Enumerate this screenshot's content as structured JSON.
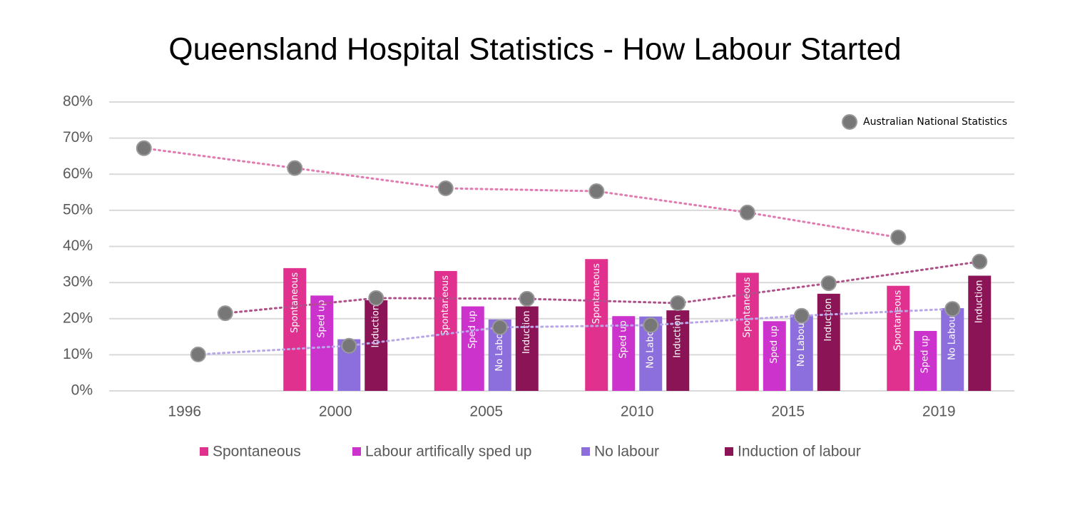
{
  "chart_data": {
    "type": "bar",
    "title": "Queensland Hospital Statistics  - How Labour Started",
    "categories": [
      "1996",
      "2000",
      "2005",
      "2010",
      "2015",
      "2019"
    ],
    "series": [
      {
        "name": "Spontaneous",
        "color": "#e0318e",
        "values": [
          null,
          34,
          33.2,
          36.5,
          32.7,
          29.1
        ],
        "bar_labels": [
          null,
          "Spontaneous",
          "Spontaneous",
          "Spontaneous",
          "Spontaneous",
          "Spontaneous"
        ]
      },
      {
        "name": "Labour artifically sped up",
        "color": "#cc33cc",
        "values": [
          null,
          26.4,
          23.4,
          20.7,
          19.3,
          16.6
        ],
        "bar_labels": [
          null,
          "Sped up",
          "Sped up",
          "Sped up",
          "Sped up",
          "Sped up"
        ]
      },
      {
        "name": "No labour",
        "color": "#8c6fdc",
        "values": [
          null,
          14.3,
          19.8,
          20.6,
          21.1,
          22.9
        ],
        "bar_labels": [
          null,
          null,
          "No Labour",
          "No Labour",
          "No Labour",
          "No Labour"
        ]
      },
      {
        "name": "Induction of labour",
        "color": "#8b1457",
        "values": [
          null,
          25.1,
          23.4,
          22.3,
          26.9,
          31.9
        ],
        "bar_labels": [
          null,
          "Induction",
          "Induction",
          "Induction",
          "Induction",
          "Induction"
        ]
      }
    ],
    "national": {
      "name": "Australian National Statistics",
      "color": "#777777",
      "lines": [
        {
          "of_series": 0,
          "color": "#e07ab0",
          "values": [
            67.2,
            61.7,
            56.1,
            55.3,
            49.4,
            42.5
          ]
        },
        {
          "of_series": 2,
          "color": "#b9a8e8",
          "values": [
            10.1,
            12.5,
            17.6,
            18.2,
            20.8,
            22.7
          ]
        },
        {
          "of_series": 3,
          "color": "#b0508a",
          "values": [
            21.5,
            25.7,
            25.5,
            24.3,
            29.8,
            35.8
          ]
        }
      ]
    },
    "ylim": [
      0,
      80
    ],
    "yticks": [
      {
        "value": 0,
        "label": "0%"
      },
      {
        "value": 10,
        "label": "10%"
      },
      {
        "value": 20,
        "label": "20%"
      },
      {
        "value": 30,
        "label": "30%"
      },
      {
        "value": 40,
        "label": "40%"
      },
      {
        "value": 50,
        "label": "50%"
      },
      {
        "value": 60,
        "label": "60%"
      },
      {
        "value": 70,
        "label": "70%"
      },
      {
        "value": 80,
        "label": "80%"
      }
    ],
    "grid": true
  }
}
